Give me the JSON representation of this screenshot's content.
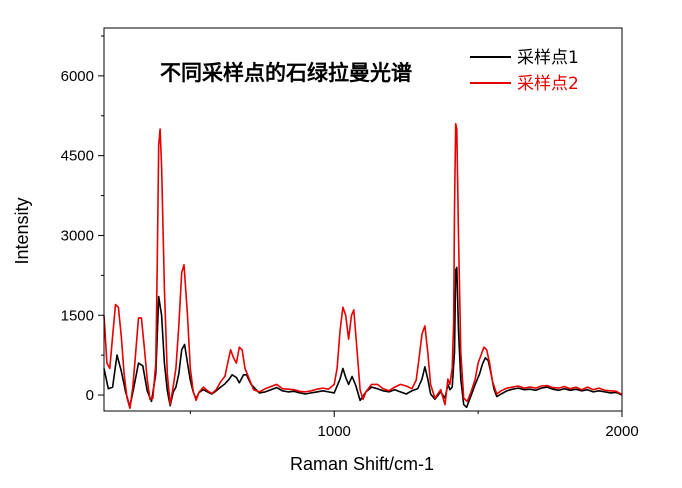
{
  "chart_data": {
    "type": "line",
    "title": "不同采样点的石绿拉曼光谱",
    "xlabel": "Raman Shift/cm-1",
    "ylabel": "Intensity",
    "xlim": [
      200,
      2000
    ],
    "ylim": [
      -300,
      6900
    ],
    "xticks": [
      1000,
      2000
    ],
    "xtick_labels": [
      "1000",
      "2000"
    ],
    "yticks": [
      0,
      1500,
      3000,
      4500,
      6000
    ],
    "ytick_labels": [
      "0",
      "1500",
      "3000",
      "4500",
      "6000"
    ],
    "grid": false,
    "legend_position": "top-right",
    "series": [
      {
        "name": "采样点1",
        "color": "#000000",
        "points": [
          [
            200,
            500
          ],
          [
            215,
            120
          ],
          [
            230,
            150
          ],
          [
            245,
            750
          ],
          [
            260,
            450
          ],
          [
            275,
            60
          ],
          [
            290,
            -220
          ],
          [
            305,
            180
          ],
          [
            320,
            600
          ],
          [
            335,
            550
          ],
          [
            350,
            80
          ],
          [
            365,
            -120
          ],
          [
            380,
            400
          ],
          [
            390,
            1850
          ],
          [
            400,
            1500
          ],
          [
            410,
            600
          ],
          [
            420,
            80
          ],
          [
            430,
            -200
          ],
          [
            440,
            50
          ],
          [
            450,
            150
          ],
          [
            460,
            400
          ],
          [
            470,
            850
          ],
          [
            480,
            950
          ],
          [
            490,
            600
          ],
          [
            500,
            280
          ],
          [
            510,
            60
          ],
          [
            520,
            -70
          ],
          [
            530,
            50
          ],
          [
            545,
            100
          ],
          [
            560,
            60
          ],
          [
            575,
            20
          ],
          [
            590,
            80
          ],
          [
            605,
            150
          ],
          [
            620,
            210
          ],
          [
            635,
            300
          ],
          [
            645,
            380
          ],
          [
            660,
            330
          ],
          [
            670,
            230
          ],
          [
            685,
            380
          ],
          [
            695,
            380
          ],
          [
            710,
            210
          ],
          [
            725,
            120
          ],
          [
            740,
            40
          ],
          [
            760,
            60
          ],
          [
            780,
            100
          ],
          [
            800,
            140
          ],
          [
            820,
            80
          ],
          [
            840,
            60
          ],
          [
            860,
            70
          ],
          [
            880,
            40
          ],
          [
            900,
            20
          ],
          [
            920,
            40
          ],
          [
            940,
            60
          ],
          [
            960,
            80
          ],
          [
            980,
            60
          ],
          [
            1000,
            40
          ],
          [
            1020,
            300
          ],
          [
            1030,
            500
          ],
          [
            1040,
            330
          ],
          [
            1050,
            200
          ],
          [
            1062,
            350
          ],
          [
            1075,
            180
          ],
          [
            1090,
            -100
          ],
          [
            1110,
            60
          ],
          [
            1130,
            150
          ],
          [
            1150,
            120
          ],
          [
            1170,
            80
          ],
          [
            1190,
            60
          ],
          [
            1210,
            100
          ],
          [
            1230,
            60
          ],
          [
            1250,
            20
          ],
          [
            1270,
            80
          ],
          [
            1290,
            120
          ],
          [
            1305,
            300
          ],
          [
            1315,
            530
          ],
          [
            1325,
            300
          ],
          [
            1335,
            20
          ],
          [
            1350,
            -80
          ],
          [
            1370,
            60
          ],
          [
            1385,
            -60
          ],
          [
            1395,
            200
          ],
          [
            1402,
            100
          ],
          [
            1410,
            150
          ],
          [
            1418,
            800
          ],
          [
            1422,
            2350
          ],
          [
            1426,
            2400
          ],
          [
            1432,
            1200
          ],
          [
            1440,
            300
          ],
          [
            1450,
            -180
          ],
          [
            1460,
            -230
          ],
          [
            1475,
            -20
          ],
          [
            1490,
            200
          ],
          [
            1505,
            400
          ],
          [
            1515,
            580
          ],
          [
            1525,
            700
          ],
          [
            1535,
            650
          ],
          [
            1545,
            400
          ],
          [
            1555,
            120
          ],
          [
            1565,
            -30
          ],
          [
            1580,
            20
          ],
          [
            1600,
            80
          ],
          [
            1620,
            110
          ],
          [
            1640,
            130
          ],
          [
            1660,
            100
          ],
          [
            1680,
            110
          ],
          [
            1700,
            90
          ],
          [
            1720,
            130
          ],
          [
            1740,
            150
          ],
          [
            1760,
            110
          ],
          [
            1780,
            90
          ],
          [
            1800,
            120
          ],
          [
            1820,
            90
          ],
          [
            1840,
            110
          ],
          [
            1860,
            80
          ],
          [
            1880,
            100
          ],
          [
            1900,
            60
          ],
          [
            1920,
            80
          ],
          [
            1940,
            60
          ],
          [
            1960,
            40
          ],
          [
            1980,
            50
          ],
          [
            2000,
            0
          ]
        ]
      },
      {
        "name": "采样点2",
        "color": "#e60000",
        "points": [
          [
            200,
            1500
          ],
          [
            210,
            600
          ],
          [
            220,
            500
          ],
          [
            230,
            1100
          ],
          [
            240,
            1700
          ],
          [
            250,
            1650
          ],
          [
            260,
            1100
          ],
          [
            270,
            400
          ],
          [
            280,
            -50
          ],
          [
            290,
            -250
          ],
          [
            300,
            150
          ],
          [
            310,
            800
          ],
          [
            320,
            1450
          ],
          [
            330,
            1450
          ],
          [
            340,
            900
          ],
          [
            350,
            300
          ],
          [
            360,
            -80
          ],
          [
            370,
            -60
          ],
          [
            380,
            600
          ],
          [
            385,
            2400
          ],
          [
            390,
            4700
          ],
          [
            395,
            5000
          ],
          [
            400,
            4300
          ],
          [
            410,
            2000
          ],
          [
            420,
            400
          ],
          [
            430,
            -180
          ],
          [
            440,
            150
          ],
          [
            450,
            500
          ],
          [
            460,
            1300
          ],
          [
            470,
            2300
          ],
          [
            478,
            2450
          ],
          [
            490,
            1500
          ],
          [
            500,
            500
          ],
          [
            510,
            70
          ],
          [
            520,
            -100
          ],
          [
            530,
            50
          ],
          [
            545,
            150
          ],
          [
            560,
            80
          ],
          [
            575,
            30
          ],
          [
            590,
            100
          ],
          [
            605,
            250
          ],
          [
            620,
            350
          ],
          [
            630,
            600
          ],
          [
            640,
            850
          ],
          [
            650,
            700
          ],
          [
            660,
            600
          ],
          [
            670,
            900
          ],
          [
            680,
            850
          ],
          [
            690,
            500
          ],
          [
            705,
            300
          ],
          [
            720,
            100
          ],
          [
            740,
            60
          ],
          [
            760,
            120
          ],
          [
            780,
            160
          ],
          [
            800,
            200
          ],
          [
            820,
            120
          ],
          [
            840,
            110
          ],
          [
            860,
            100
          ],
          [
            880,
            70
          ],
          [
            900,
            60
          ],
          [
            920,
            80
          ],
          [
            940,
            110
          ],
          [
            960,
            130
          ],
          [
            980,
            110
          ],
          [
            1000,
            200
          ],
          [
            1010,
            500
          ],
          [
            1020,
            1200
          ],
          [
            1030,
            1650
          ],
          [
            1040,
            1500
          ],
          [
            1050,
            1050
          ],
          [
            1060,
            1500
          ],
          [
            1068,
            1600
          ],
          [
            1080,
            800
          ],
          [
            1090,
            100
          ],
          [
            1100,
            -80
          ],
          [
            1110,
            60
          ],
          [
            1130,
            200
          ],
          [
            1150,
            200
          ],
          [
            1170,
            120
          ],
          [
            1190,
            80
          ],
          [
            1210,
            150
          ],
          [
            1230,
            200
          ],
          [
            1250,
            170
          ],
          [
            1270,
            120
          ],
          [
            1285,
            280
          ],
          [
            1295,
            700
          ],
          [
            1305,
            1150
          ],
          [
            1315,
            1300
          ],
          [
            1325,
            800
          ],
          [
            1335,
            200
          ],
          [
            1350,
            -60
          ],
          [
            1370,
            100
          ],
          [
            1385,
            -180
          ],
          [
            1395,
            300
          ],
          [
            1402,
            200
          ],
          [
            1410,
            500
          ],
          [
            1415,
            1400
          ],
          [
            1418,
            3500
          ],
          [
            1422,
            5100
          ],
          [
            1426,
            5000
          ],
          [
            1432,
            3000
          ],
          [
            1440,
            800
          ],
          [
            1450,
            -60
          ],
          [
            1462,
            -120
          ],
          [
            1475,
            50
          ],
          [
            1490,
            300
          ],
          [
            1500,
            600
          ],
          [
            1510,
            750
          ],
          [
            1520,
            900
          ],
          [
            1530,
            850
          ],
          [
            1540,
            600
          ],
          [
            1550,
            250
          ],
          [
            1565,
            20
          ],
          [
            1580,
            80
          ],
          [
            1600,
            130
          ],
          [
            1620,
            150
          ],
          [
            1640,
            170
          ],
          [
            1660,
            130
          ],
          [
            1680,
            150
          ],
          [
            1700,
            130
          ],
          [
            1720,
            170
          ],
          [
            1740,
            180
          ],
          [
            1760,
            140
          ],
          [
            1780,
            130
          ],
          [
            1800,
            160
          ],
          [
            1820,
            120
          ],
          [
            1840,
            150
          ],
          [
            1860,
            100
          ],
          [
            1880,
            150
          ],
          [
            1900,
            100
          ],
          [
            1920,
            130
          ],
          [
            1940,
            90
          ],
          [
            1960,
            80
          ],
          [
            1980,
            70
          ],
          [
            2000,
            10
          ]
        ]
      }
    ]
  }
}
